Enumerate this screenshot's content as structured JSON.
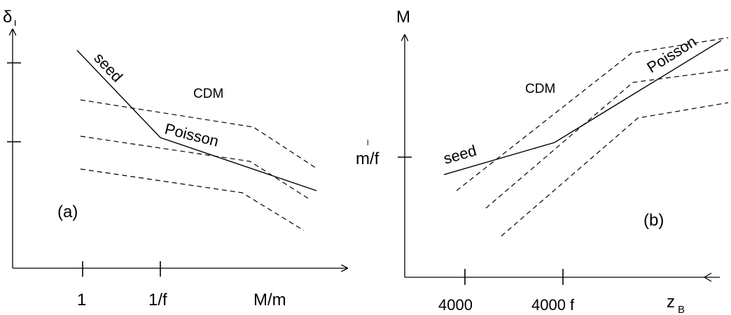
{
  "panel_a": {
    "panel_label": "(a)",
    "y_axis_label": "δ",
    "y_axis_subscript": "ι",
    "x_ticks": [
      "1",
      "1/f"
    ],
    "x_axis_label": "M/m",
    "labels": {
      "seed": "seed",
      "poisson": "Poisson",
      "cdm": "CDM"
    }
  },
  "panel_b": {
    "panel_label": "(b)",
    "y_axis_label": "M",
    "y_tick_label": "m/f",
    "x_ticks": [
      "4000",
      "4000 f"
    ],
    "x_axis_label": "z",
    "x_axis_subscript": "B",
    "labels": {
      "seed": "seed",
      "poisson": "Poisson",
      "cdm": "CDM"
    }
  }
}
